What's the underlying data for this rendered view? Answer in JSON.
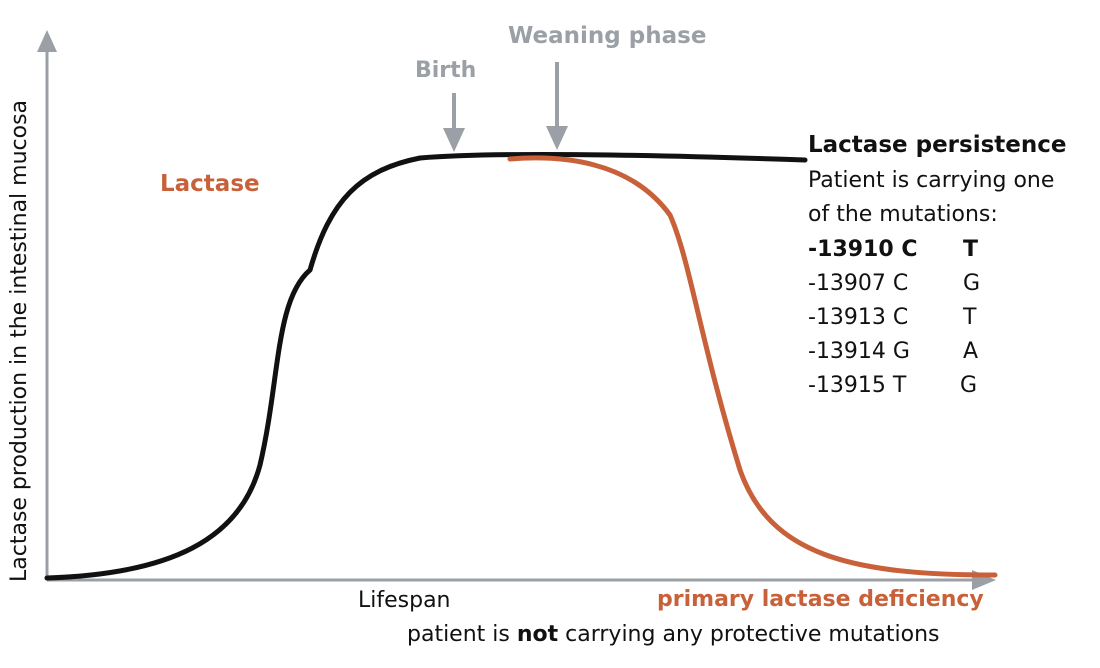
{
  "axes": {
    "y_label": "Lactase production in the intestinal mucosa",
    "x_label": "Lifespan"
  },
  "markers": {
    "birth": "Birth",
    "weaning": "Weaning phase"
  },
  "curve_label": "Lactase",
  "persistence": {
    "title": "Lactase persistence",
    "desc_line1": "Patient is carrying one",
    "desc_line2": "of the mutations:",
    "mutations": [
      {
        "pos": "-13910 C",
        "alt": "T",
        "bold": true
      },
      {
        "pos": "-13907 C",
        "alt": "G",
        "bold": false
      },
      {
        "pos": "-13913 C",
        "alt": "T",
        "bold": false
      },
      {
        "pos": "-13914 G",
        "alt": "A",
        "bold": false
      },
      {
        "pos": "-13915 T",
        "alt": "G",
        "bold": false
      }
    ]
  },
  "deficiency": {
    "title": "primary lactase deficiency",
    "desc_pre": "patient is ",
    "desc_bold": "not",
    "desc_post": " carrying any protective mutations"
  },
  "colors": {
    "axis": "#9aa0a6",
    "persistence_curve": "#111111",
    "deficiency_curve": "#c8613a",
    "marker": "#9aa0a6"
  }
}
